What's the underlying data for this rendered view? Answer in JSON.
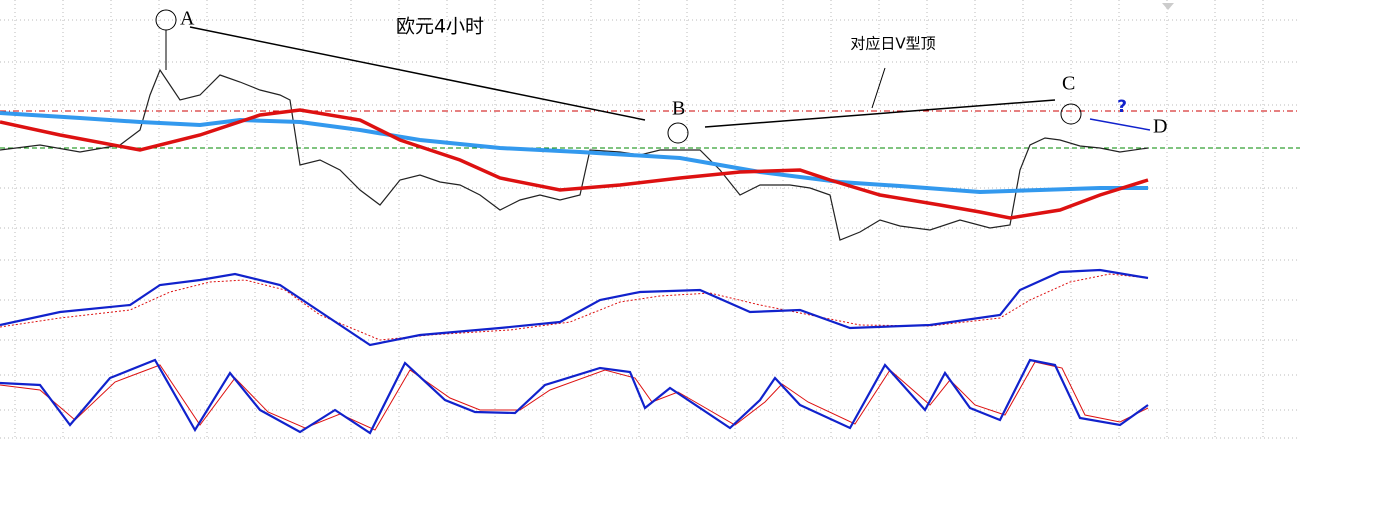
{
  "title": "欧元4小时",
  "annotations": {
    "daily_note": "对应日V型顶",
    "points": [
      "A",
      "B",
      "C",
      "D"
    ],
    "question": "?"
  }
}
